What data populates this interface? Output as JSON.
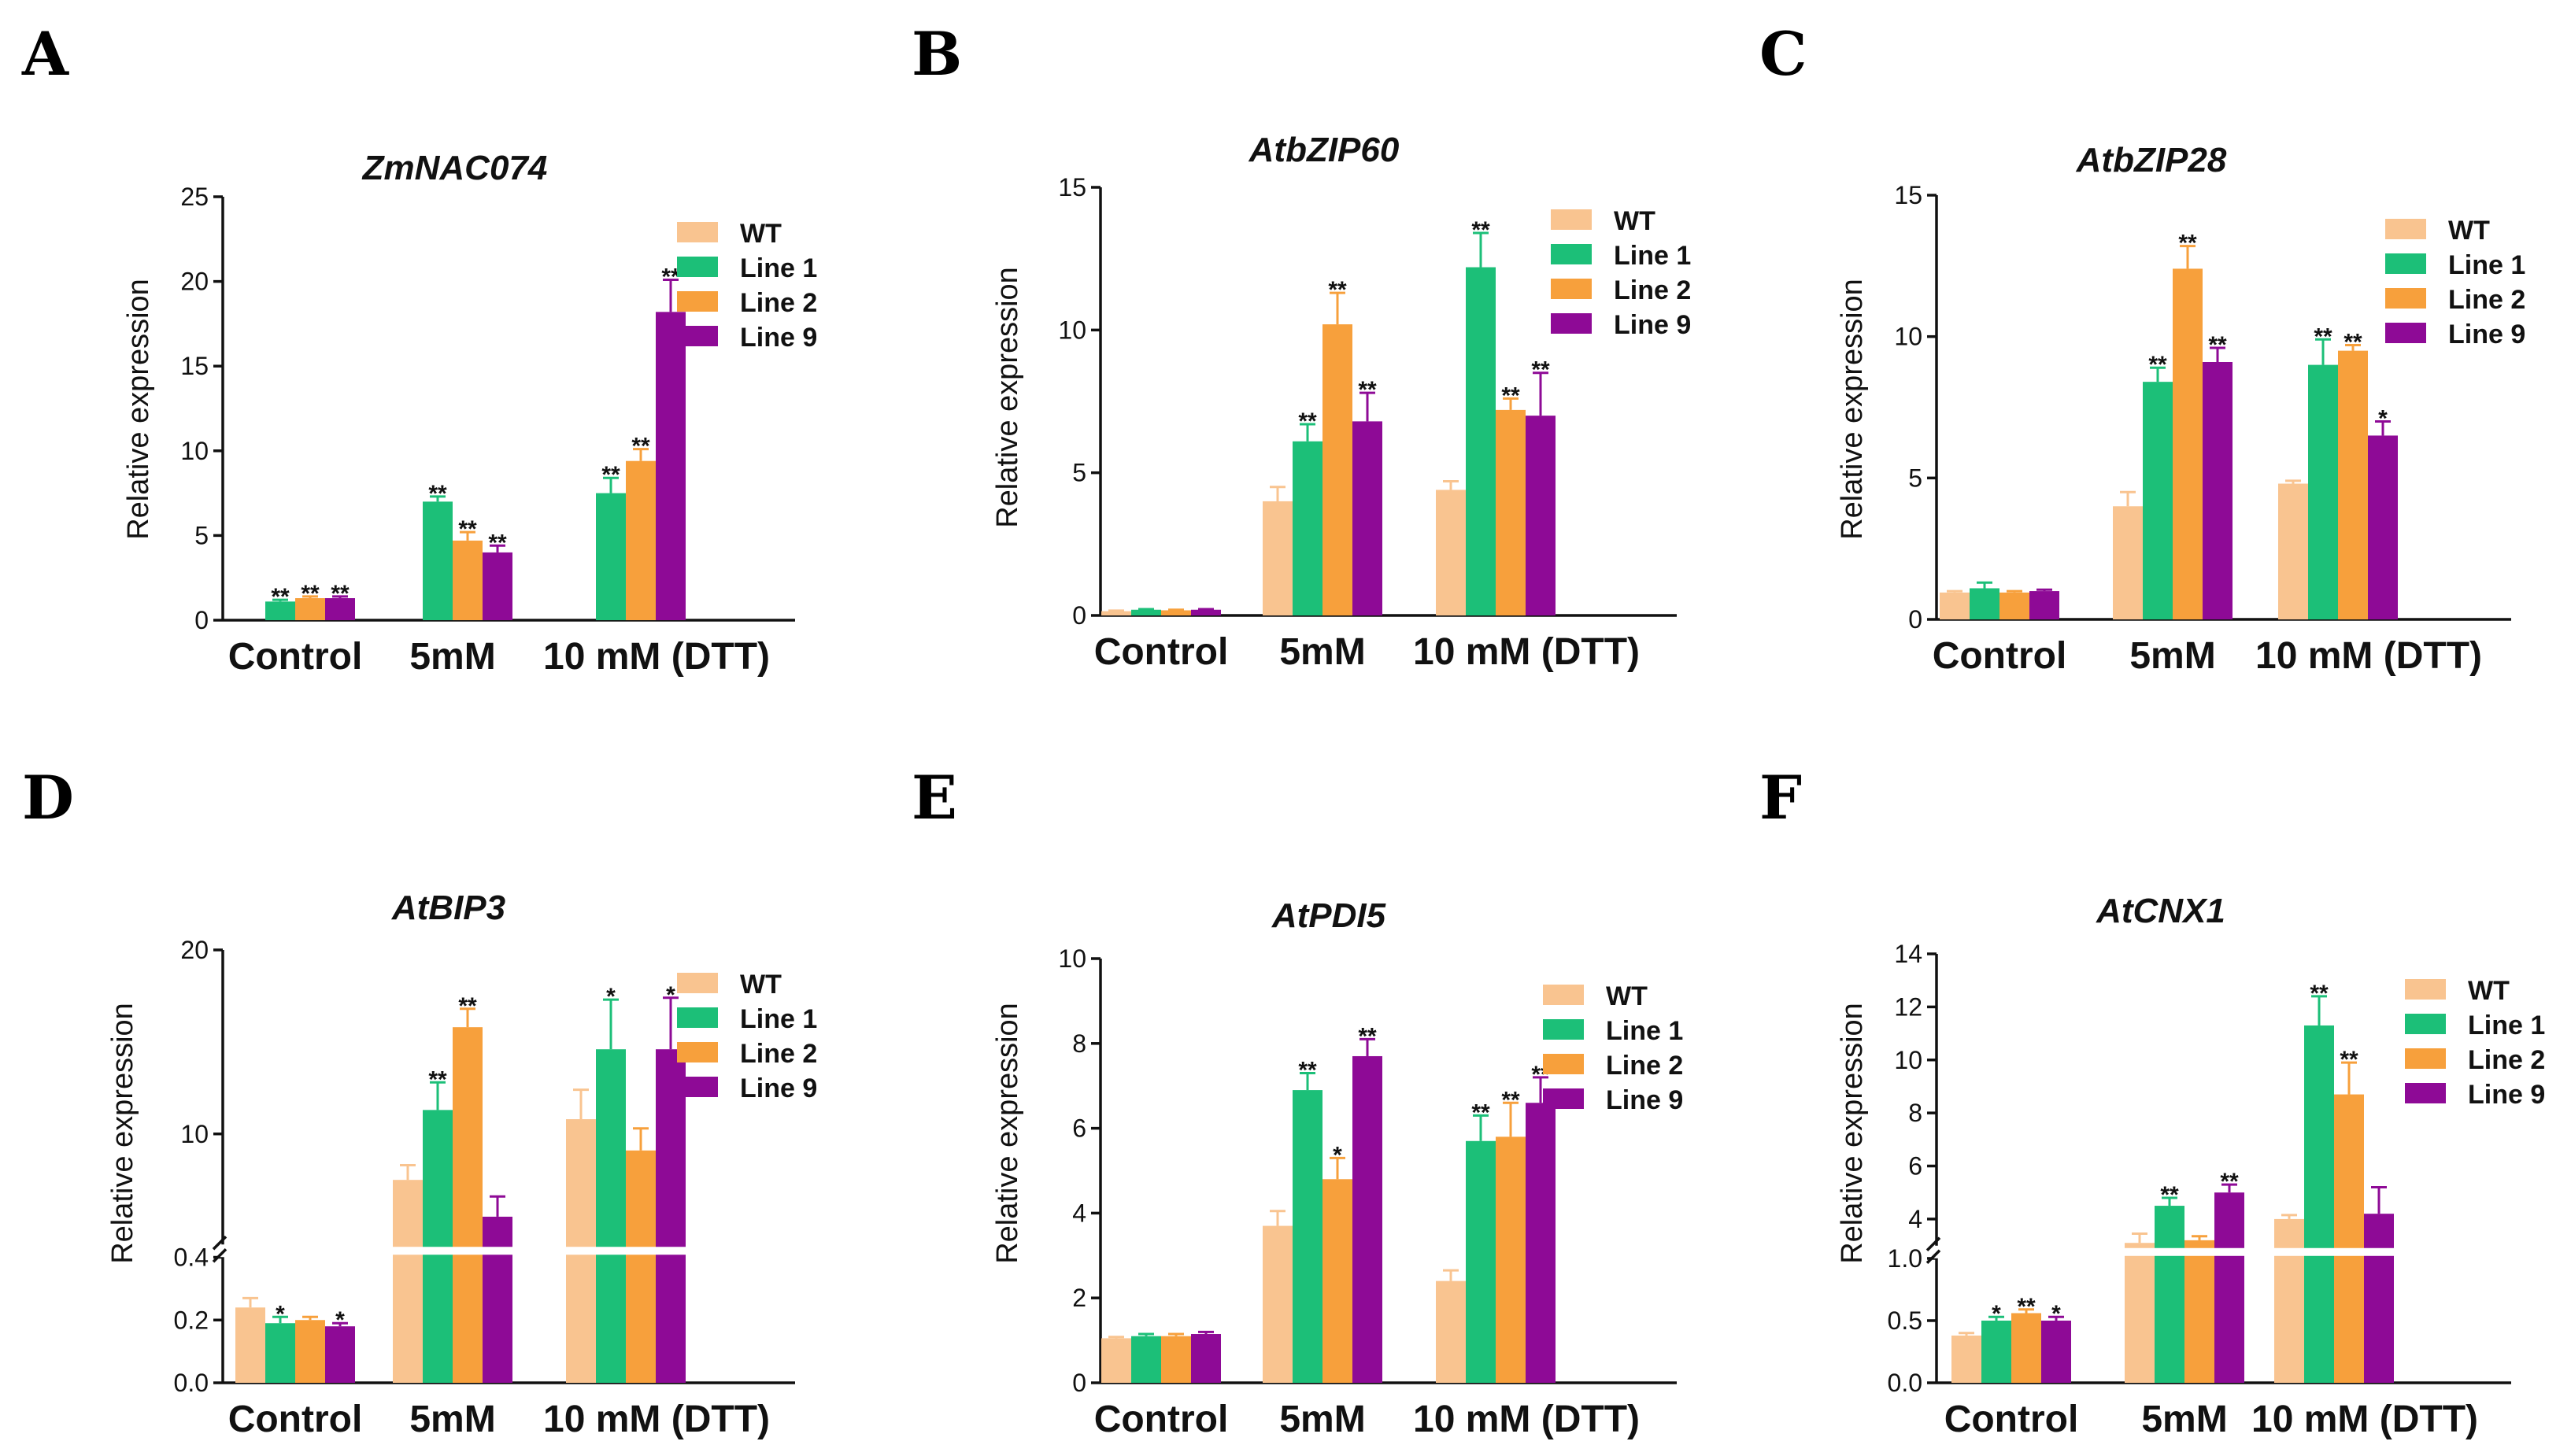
{
  "colors": {
    "WT": "#f9c490",
    "Line 1": "#1cbf78",
    "Line 2": "#f7a03c",
    "Line 9": "#8e0a96"
  },
  "chart_data": [
    {
      "type": "bar",
      "letter": "A",
      "title": "ZmNAC074",
      "ylabel": "Relative expression",
      "categories": [
        "Control",
        "5mM",
        "10 mM (DTT)"
      ],
      "ylim": [
        0,
        25
      ],
      "yticks": [
        "0",
        "5",
        "10",
        "15",
        "20",
        "25"
      ],
      "series": [
        {
          "name": "WT",
          "values": [
            0.0,
            0.0,
            0.0
          ],
          "err": [
            0.0,
            0.0,
            0.0
          ],
          "sig": [
            "",
            "",
            ""
          ]
        },
        {
          "name": "Line 1",
          "values": [
            1.1,
            7.0,
            7.5
          ],
          "err": [
            0.1,
            0.3,
            0.9
          ],
          "sig": [
            "**",
            "**",
            "**"
          ]
        },
        {
          "name": "Line 2",
          "values": [
            1.3,
            4.7,
            9.4
          ],
          "err": [
            0.1,
            0.5,
            0.7
          ],
          "sig": [
            "**",
            "**",
            "**"
          ]
        },
        {
          "name": "Line 9",
          "values": [
            1.3,
            4.0,
            18.2
          ],
          "err": [
            0.1,
            0.4,
            1.9
          ],
          "sig": [
            "**",
            "**",
            "**"
          ]
        }
      ]
    },
    {
      "type": "bar",
      "letter": "B",
      "title": "AtbZIP60",
      "ylabel": "Relative expression",
      "categories": [
        "Control",
        "5mM",
        "10 mM (DTT)"
      ],
      "ylim": [
        0,
        15
      ],
      "yticks": [
        "0",
        "5",
        "10",
        "15"
      ],
      "series": [
        {
          "name": "WT",
          "values": [
            0.15,
            4.0,
            4.4
          ],
          "err": [
            0.02,
            0.5,
            0.3
          ],
          "sig": [
            "",
            "",
            ""
          ]
        },
        {
          "name": "Line 1",
          "values": [
            0.2,
            6.1,
            12.2
          ],
          "err": [
            0.02,
            0.6,
            1.2
          ],
          "sig": [
            "",
            "**",
            "**"
          ]
        },
        {
          "name": "Line 2",
          "values": [
            0.18,
            10.2,
            7.2
          ],
          "err": [
            0.02,
            1.1,
            0.4
          ],
          "sig": [
            "",
            "**",
            "**"
          ]
        },
        {
          "name": "Line 9",
          "values": [
            0.2,
            6.8,
            7.0
          ],
          "err": [
            0.02,
            1.0,
            1.5
          ],
          "sig": [
            "",
            "**",
            "**"
          ]
        }
      ]
    },
    {
      "type": "bar",
      "letter": "C",
      "title": "AtbZIP28",
      "ylabel": "Relative expression",
      "categories": [
        "Control",
        "5mM",
        "10 mM (DTT)"
      ],
      "ylim": [
        0,
        15
      ],
      "yticks": [
        "0",
        "5",
        "10",
        "15"
      ],
      "series": [
        {
          "name": "WT",
          "values": [
            0.95,
            4.0,
            4.8
          ],
          "err": [
            0.05,
            0.5,
            0.1
          ],
          "sig": [
            "",
            "",
            ""
          ]
        },
        {
          "name": "Line 1",
          "values": [
            1.1,
            8.4,
            9.0
          ],
          "err": [
            0.2,
            0.5,
            0.9
          ],
          "sig": [
            "",
            "**",
            "**"
          ]
        },
        {
          "name": "Line 2",
          "values": [
            0.95,
            12.4,
            9.5
          ],
          "err": [
            0.05,
            0.8,
            0.2
          ],
          "sig": [
            "",
            "**",
            "**"
          ]
        },
        {
          "name": "Line 9",
          "values": [
            1.0,
            9.1,
            6.5
          ],
          "err": [
            0.05,
            0.5,
            0.5
          ],
          "sig": [
            "",
            "**",
            "*"
          ]
        }
      ]
    },
    {
      "type": "bar",
      "letter": "D",
      "title": "AtBIP3",
      "ylabel": "Relative expression",
      "categories": [
        "Control",
        "5mM",
        "10 mM (DTT)"
      ],
      "broken": true,
      "low_max": 0.4,
      "high_min": 4,
      "high_max": 20,
      "yticks_low": [
        "0.0",
        "0.2",
        "0.4"
      ],
      "yticks_high": [
        "10",
        "20"
      ],
      "series": [
        {
          "name": "WT",
          "values": [
            0.24,
            7.5,
            10.8
          ],
          "err": [
            0.03,
            0.8,
            1.6
          ],
          "sig": [
            "",
            "",
            ""
          ]
        },
        {
          "name": "Line 1",
          "values": [
            0.19,
            11.3,
            14.6
          ],
          "err": [
            0.02,
            1.5,
            2.7
          ],
          "sig": [
            "*",
            "**",
            "*"
          ]
        },
        {
          "name": "Line 2",
          "values": [
            0.2,
            15.8,
            9.1
          ],
          "err": [
            0.01,
            1.0,
            1.2
          ],
          "sig": [
            "",
            "**",
            ""
          ]
        },
        {
          "name": "Line 9",
          "values": [
            0.18,
            5.5,
            14.6
          ],
          "err": [
            0.01,
            1.1,
            2.8
          ],
          "sig": [
            "*",
            "",
            "*"
          ]
        }
      ]
    },
    {
      "type": "bar",
      "letter": "E",
      "title": "AtPDI5",
      "ylabel": "Relative expression",
      "categories": [
        "Control",
        "5mM",
        "10 mM (DTT)"
      ],
      "ylim": [
        0,
        10
      ],
      "yticks": [
        "0",
        "2",
        "4",
        "6",
        "8",
        "10"
      ],
      "series": [
        {
          "name": "WT",
          "values": [
            1.05,
            3.7,
            2.4
          ],
          "err": [
            0.03,
            0.35,
            0.25
          ],
          "sig": [
            "",
            "",
            ""
          ]
        },
        {
          "name": "Line 1",
          "values": [
            1.1,
            6.9,
            5.7
          ],
          "err": [
            0.05,
            0.4,
            0.6
          ],
          "sig": [
            "",
            "**",
            "**"
          ]
        },
        {
          "name": "Line 2",
          "values": [
            1.1,
            4.8,
            5.8
          ],
          "err": [
            0.05,
            0.5,
            0.8
          ],
          "sig": [
            "",
            "*",
            "**"
          ]
        },
        {
          "name": "Line 9",
          "values": [
            1.15,
            7.7,
            6.6
          ],
          "err": [
            0.05,
            0.4,
            0.6
          ],
          "sig": [
            "",
            "**",
            "**"
          ]
        }
      ]
    },
    {
      "type": "bar",
      "letter": "F",
      "title": "AtCNX1",
      "ylabel": "Relative expression",
      "categories": [
        "Control",
        "5mM",
        "10 mM (DTT)"
      ],
      "broken": true,
      "low_max": 1.0,
      "high_min": 3,
      "high_max": 14,
      "yticks_low": [
        "0.0",
        "0.5",
        "1.0"
      ],
      "yticks_high": [
        "4",
        "6",
        "8",
        "10",
        "12",
        "14"
      ],
      "series": [
        {
          "name": "WT",
          "values": [
            0.38,
            3.1,
            4.0
          ],
          "err": [
            0.02,
            0.35,
            0.15
          ],
          "sig": [
            "",
            "",
            ""
          ]
        },
        {
          "name": "Line 1",
          "values": [
            0.5,
            4.5,
            11.3
          ],
          "err": [
            0.03,
            0.3,
            1.1
          ],
          "sig": [
            "*",
            "**",
            "**"
          ]
        },
        {
          "name": "Line 2",
          "values": [
            0.56,
            3.2,
            8.7
          ],
          "err": [
            0.03,
            0.15,
            1.2
          ],
          "sig": [
            "**",
            "",
            "**"
          ]
        },
        {
          "name": "Line 9",
          "values": [
            0.5,
            5.0,
            4.2
          ],
          "err": [
            0.03,
            0.3,
            1.0
          ],
          "sig": [
            "*",
            "**",
            ""
          ]
        }
      ]
    }
  ]
}
